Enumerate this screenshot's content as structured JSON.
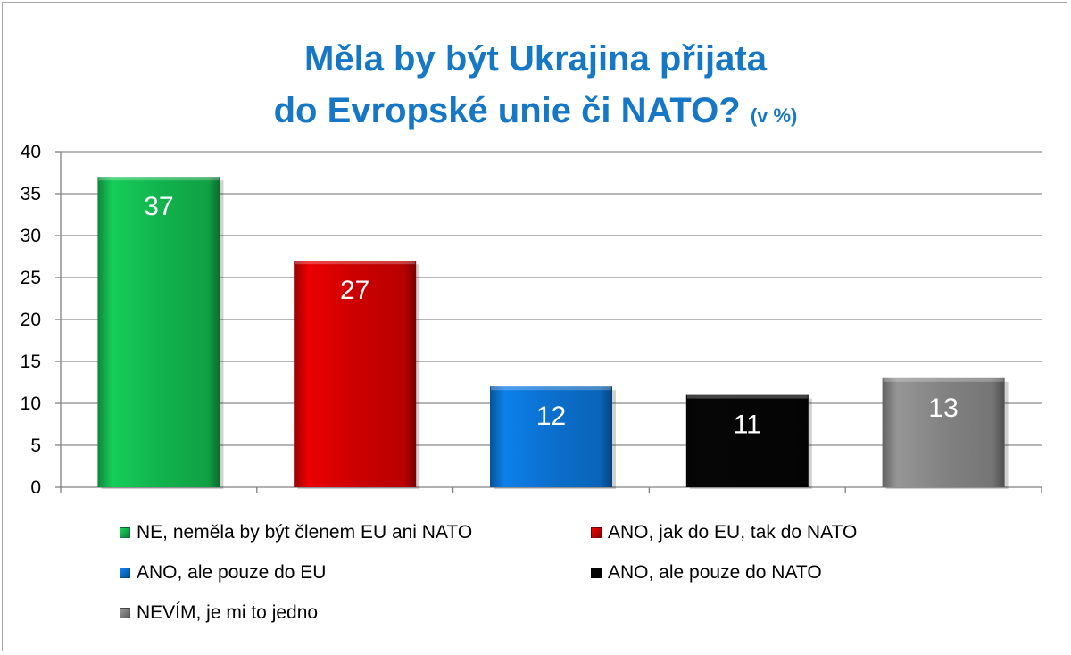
{
  "chart_data": {
    "type": "bar",
    "title_line1": "Měla by být Ukrajina přijata",
    "title_line2": "do Evropské unie či NATO?",
    "title_unit": "(v %)",
    "ylim": [
      0,
      40
    ],
    "yticks": [
      "0",
      "5",
      "10",
      "15",
      "20",
      "25",
      "30",
      "35",
      "40"
    ],
    "grid": true,
    "legend_position": "bottom",
    "series": [
      {
        "name": "NE, neměla by být členem EU ani NATO",
        "value": 37,
        "label": "37",
        "color": "#12b34d"
      },
      {
        "name": "ANO, jak do EU, tak do NATO",
        "value": 27,
        "label": "27",
        "color": "#cc0000"
      },
      {
        "name": "ANO, ale pouze do EU",
        "value": 12,
        "label": "12",
        "color": "#0b6fcc"
      },
      {
        "name": "ANO, ale pouze do NATO",
        "value": 11,
        "label": "11",
        "color": "#050505"
      },
      {
        "name": "NEVÍM, je mi to jedno",
        "value": 13,
        "label": "13",
        "color": "#828282"
      }
    ]
  }
}
